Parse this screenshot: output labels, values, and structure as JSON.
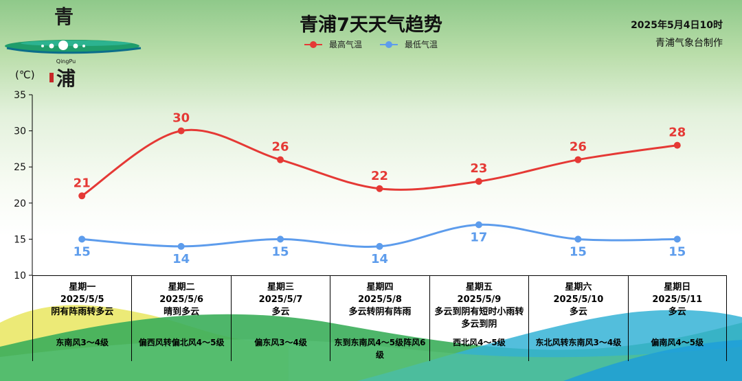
{
  "header": {
    "title": "青浦7天天气趋势",
    "issue_time": "2025年5月4日10时",
    "source": "青浦气象台制作",
    "logo_chars": [
      "青",
      "浦"
    ],
    "logo_pinyin": "QingPu"
  },
  "colors": {
    "high": "#e53935",
    "low": "#5d9cec"
  },
  "chart_data": {
    "type": "line",
    "title": "青浦7天天气趋势",
    "unit": "(℃)",
    "ylim": [
      10,
      35
    ],
    "yticks": [
      10,
      15,
      20,
      25,
      30,
      35
    ],
    "categories": [
      "2025/5/5",
      "2025/5/6",
      "2025/5/7",
      "2025/5/8",
      "2025/5/9",
      "2025/5/10",
      "2025/5/11"
    ],
    "series": [
      {
        "name": "最高气温",
        "values": [
          21,
          30,
          26,
          22,
          23,
          26,
          28
        ]
      },
      {
        "name": "最低气温",
        "values": [
          15,
          14,
          15,
          14,
          17,
          15,
          15
        ]
      }
    ],
    "legend": "top-center"
  },
  "days": [
    {
      "weekday": "星期一",
      "date": "2025/5/5",
      "weather": "阴有阵雨转多云",
      "wind": "东南风3～4级"
    },
    {
      "weekday": "星期二",
      "date": "2025/5/6",
      "weather": "晴到多云",
      "wind": "偏西风转偏北风4～5级"
    },
    {
      "weekday": "星期三",
      "date": "2025/5/7",
      "weather": "多云",
      "wind": "偏东风3～4级"
    },
    {
      "weekday": "星期四",
      "date": "2025/5/8",
      "weather": "多云转阴有阵雨",
      "wind": "东到东南风4～5级阵风6级"
    },
    {
      "weekday": "星期五",
      "date": "2025/5/9",
      "weather": "多云到阴有短时小雨转多云到阴",
      "wind": "西北风4～5级"
    },
    {
      "weekday": "星期六",
      "date": "2025/5/10",
      "weather": "多云",
      "wind": "东北风转东南风3～4级"
    },
    {
      "weekday": "星期日",
      "date": "2025/5/11",
      "weather": "多云",
      "wind": "偏南风4～5级"
    }
  ]
}
